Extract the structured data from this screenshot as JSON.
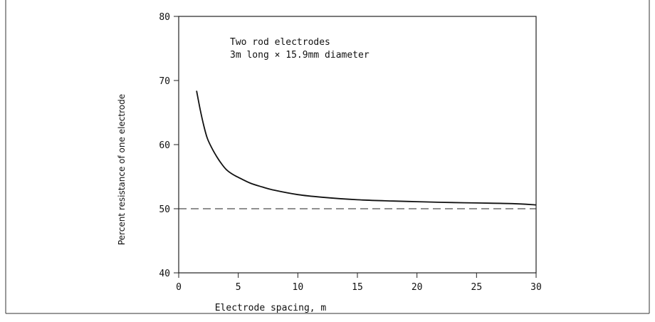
{
  "chart_data": {
    "type": "line",
    "title": "",
    "xlabel": "Electrode spacing, m",
    "ylabel": "Percent resistance of one electrode",
    "xlim": [
      0,
      30
    ],
    "ylim": [
      40,
      80
    ],
    "x_ticks": [
      0,
      5,
      10,
      15,
      20,
      25,
      30
    ],
    "y_ticks": [
      40,
      50,
      60,
      70,
      80
    ],
    "x_tick_labels": [
      "0",
      "5",
      "10",
      "15",
      "20",
      "25",
      "30"
    ],
    "y_tick_labels": [
      "40",
      "50",
      "60",
      "70",
      "80"
    ],
    "annotation": [
      "Two rod electrodes",
      "3m long × 15.9mm diameter"
    ],
    "grid": false,
    "series": [
      {
        "x": [
          1.5,
          1.8,
          2.1,
          2.4,
          2.8,
          3.2,
          3.6,
          4.0,
          4.5,
          5.0,
          6.0,
          7.0,
          8.0,
          10.0,
          12.0,
          15.0,
          18.0,
          20.0,
          22.0,
          25.0,
          28.0,
          30.0
        ],
        "values": [
          68.4,
          65.5,
          63.0,
          61.0,
          59.4,
          58.1,
          57.0,
          56.1,
          55.4,
          54.9,
          54.0,
          53.4,
          52.9,
          52.2,
          51.8,
          51.4,
          51.2,
          51.1,
          51.0,
          50.9,
          50.8,
          50.6
        ]
      }
    ],
    "reference_line": {
      "y": 50,
      "style": "dashed"
    }
  }
}
